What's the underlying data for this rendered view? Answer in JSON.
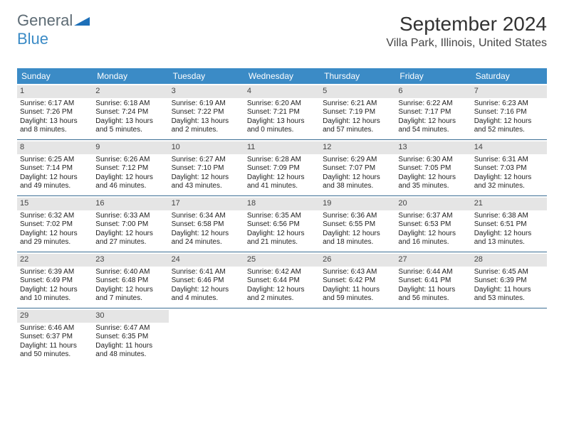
{
  "logo": {
    "text1": "General",
    "text2": "Blue"
  },
  "title": "September 2024",
  "location": "Villa Park, Illinois, United States",
  "weekdays": [
    "Sunday",
    "Monday",
    "Tuesday",
    "Wednesday",
    "Thursday",
    "Friday",
    "Saturday"
  ],
  "colors": {
    "header_bg": "#3b8bc6",
    "header_text": "#ffffff",
    "daynum_bg": "#e5e5e5",
    "week_border": "#3b6e94",
    "title_color": "#333333",
    "logo_gray": "#5d6b74",
    "logo_blue": "#3b8bc6",
    "body_text": "#222222"
  },
  "weeks": [
    [
      {
        "num": "1",
        "sunrise": "6:17 AM",
        "sunset": "7:26 PM",
        "daylight": "13 hours and 8 minutes."
      },
      {
        "num": "2",
        "sunrise": "6:18 AM",
        "sunset": "7:24 PM",
        "daylight": "13 hours and 5 minutes."
      },
      {
        "num": "3",
        "sunrise": "6:19 AM",
        "sunset": "7:22 PM",
        "daylight": "13 hours and 2 minutes."
      },
      {
        "num": "4",
        "sunrise": "6:20 AM",
        "sunset": "7:21 PM",
        "daylight": "13 hours and 0 minutes."
      },
      {
        "num": "5",
        "sunrise": "6:21 AM",
        "sunset": "7:19 PM",
        "daylight": "12 hours and 57 minutes."
      },
      {
        "num": "6",
        "sunrise": "6:22 AM",
        "sunset": "7:17 PM",
        "daylight": "12 hours and 54 minutes."
      },
      {
        "num": "7",
        "sunrise": "6:23 AM",
        "sunset": "7:16 PM",
        "daylight": "12 hours and 52 minutes."
      }
    ],
    [
      {
        "num": "8",
        "sunrise": "6:25 AM",
        "sunset": "7:14 PM",
        "daylight": "12 hours and 49 minutes."
      },
      {
        "num": "9",
        "sunrise": "6:26 AM",
        "sunset": "7:12 PM",
        "daylight": "12 hours and 46 minutes."
      },
      {
        "num": "10",
        "sunrise": "6:27 AM",
        "sunset": "7:10 PM",
        "daylight": "12 hours and 43 minutes."
      },
      {
        "num": "11",
        "sunrise": "6:28 AM",
        "sunset": "7:09 PM",
        "daylight": "12 hours and 41 minutes."
      },
      {
        "num": "12",
        "sunrise": "6:29 AM",
        "sunset": "7:07 PM",
        "daylight": "12 hours and 38 minutes."
      },
      {
        "num": "13",
        "sunrise": "6:30 AM",
        "sunset": "7:05 PM",
        "daylight": "12 hours and 35 minutes."
      },
      {
        "num": "14",
        "sunrise": "6:31 AM",
        "sunset": "7:03 PM",
        "daylight": "12 hours and 32 minutes."
      }
    ],
    [
      {
        "num": "15",
        "sunrise": "6:32 AM",
        "sunset": "7:02 PM",
        "daylight": "12 hours and 29 minutes."
      },
      {
        "num": "16",
        "sunrise": "6:33 AM",
        "sunset": "7:00 PM",
        "daylight": "12 hours and 27 minutes."
      },
      {
        "num": "17",
        "sunrise": "6:34 AM",
        "sunset": "6:58 PM",
        "daylight": "12 hours and 24 minutes."
      },
      {
        "num": "18",
        "sunrise": "6:35 AM",
        "sunset": "6:56 PM",
        "daylight": "12 hours and 21 minutes."
      },
      {
        "num": "19",
        "sunrise": "6:36 AM",
        "sunset": "6:55 PM",
        "daylight": "12 hours and 18 minutes."
      },
      {
        "num": "20",
        "sunrise": "6:37 AM",
        "sunset": "6:53 PM",
        "daylight": "12 hours and 16 minutes."
      },
      {
        "num": "21",
        "sunrise": "6:38 AM",
        "sunset": "6:51 PM",
        "daylight": "12 hours and 13 minutes."
      }
    ],
    [
      {
        "num": "22",
        "sunrise": "6:39 AM",
        "sunset": "6:49 PM",
        "daylight": "12 hours and 10 minutes."
      },
      {
        "num": "23",
        "sunrise": "6:40 AM",
        "sunset": "6:48 PM",
        "daylight": "12 hours and 7 minutes."
      },
      {
        "num": "24",
        "sunrise": "6:41 AM",
        "sunset": "6:46 PM",
        "daylight": "12 hours and 4 minutes."
      },
      {
        "num": "25",
        "sunrise": "6:42 AM",
        "sunset": "6:44 PM",
        "daylight": "12 hours and 2 minutes."
      },
      {
        "num": "26",
        "sunrise": "6:43 AM",
        "sunset": "6:42 PM",
        "daylight": "11 hours and 59 minutes."
      },
      {
        "num": "27",
        "sunrise": "6:44 AM",
        "sunset": "6:41 PM",
        "daylight": "11 hours and 56 minutes."
      },
      {
        "num": "28",
        "sunrise": "6:45 AM",
        "sunset": "6:39 PM",
        "daylight": "11 hours and 53 minutes."
      }
    ],
    [
      {
        "num": "29",
        "sunrise": "6:46 AM",
        "sunset": "6:37 PM",
        "daylight": "11 hours and 50 minutes."
      },
      {
        "num": "30",
        "sunrise": "6:47 AM",
        "sunset": "6:35 PM",
        "daylight": "11 hours and 48 minutes."
      },
      null,
      null,
      null,
      null,
      null
    ]
  ]
}
